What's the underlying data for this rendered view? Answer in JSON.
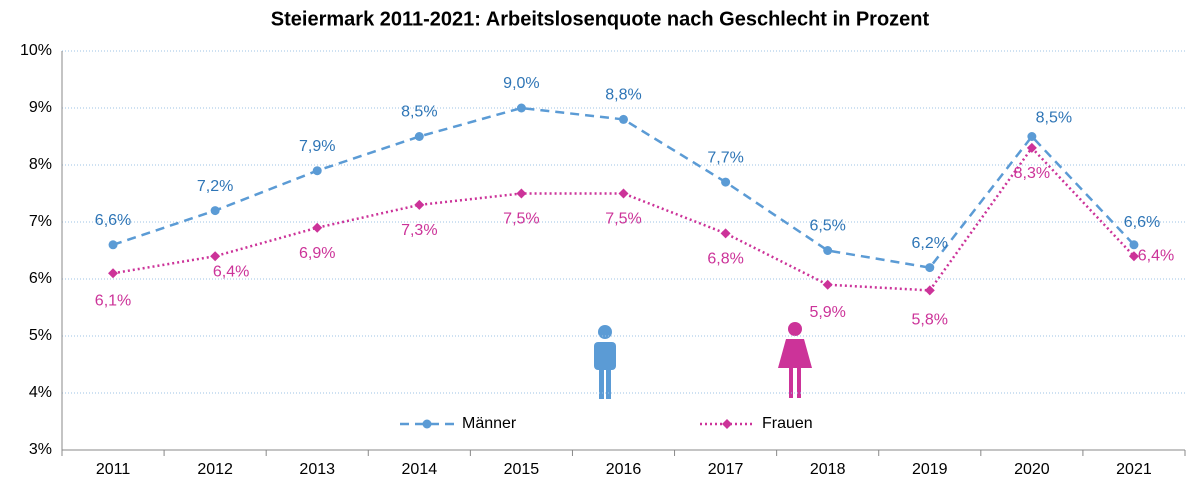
{
  "chart_data": {
    "type": "line",
    "title": "Steiermark 2011-2021: Arbeitslosenquote nach Geschlecht in Prozent",
    "categories": [
      "2011",
      "2012",
      "2013",
      "2014",
      "2015",
      "2016",
      "2017",
      "2018",
      "2019",
      "2020",
      "2021"
    ],
    "series": [
      {
        "name": "Männer",
        "color": "#5b9bd5",
        "label_color": "#2e75b6",
        "line_style": "dashed",
        "marker": "circle",
        "values": [
          6.6,
          7.2,
          7.9,
          8.5,
          9.0,
          8.8,
          7.7,
          6.5,
          6.2,
          8.5,
          6.6
        ],
        "value_labels": [
          "6,6%",
          "7,2%",
          "7,9%",
          "8,5%",
          "9,0%",
          "8,8%",
          "7,7%",
          "6,5%",
          "6,2%",
          "8,5%",
          "6,6%"
        ]
      },
      {
        "name": "Frauen",
        "color": "#cc3399",
        "label_color": "#cc3399",
        "line_style": "dotted",
        "marker": "diamond",
        "values": [
          6.1,
          6.4,
          6.9,
          7.3,
          7.5,
          7.5,
          6.8,
          5.9,
          5.8,
          8.3,
          6.4
        ],
        "value_labels": [
          "6,1%",
          "6,4%",
          "6,9%",
          "7,3%",
          "7,5%",
          "7,5%",
          "6,8%",
          "5,9%",
          "5,8%",
          "8,3%",
          "6,4%"
        ]
      }
    ],
    "ylim": [
      3,
      10
    ],
    "yticks": [
      {
        "value": 3,
        "label": "3%"
      },
      {
        "value": 4,
        "label": "4%"
      },
      {
        "value": 5,
        "label": "5%"
      },
      {
        "value": 6,
        "label": "6%"
      },
      {
        "value": 7,
        "label": "7%"
      },
      {
        "value": 8,
        "label": "8%"
      },
      {
        "value": 9,
        "label": "9%"
      },
      {
        "value": 10,
        "label": "10%"
      }
    ],
    "grid": true,
    "legend": "bottom"
  }
}
